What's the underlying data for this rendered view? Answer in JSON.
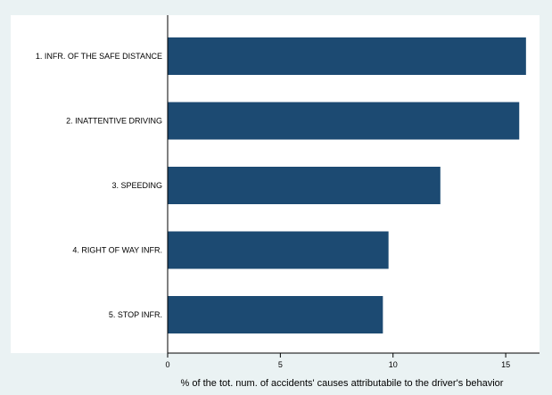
{
  "chart_data": {
    "type": "bar",
    "orientation": "horizontal",
    "categories": [
      "1. INFR. OF THE SAFE DISTANCE",
      "2. INATTENTIVE DRIVING",
      "3. SPEEDING",
      "4. RIGHT OF WAY INFR.",
      "5. STOP INFR."
    ],
    "values": [
      15.9,
      15.6,
      12.1,
      9.8,
      9.55
    ],
    "xlabel": "% of the tot. num. of accidents' causes attributabile to the driver's behavior",
    "ylabel": "",
    "xlim": [
      0,
      16.5
    ],
    "xticks": [
      "0",
      "5",
      "10",
      "15"
    ],
    "grid": false,
    "legend": "none",
    "colors": {
      "bar": "#1c4a72",
      "plot_background": "#ffffff",
      "outer_background": "#eaf2f3",
      "axis": "#000000"
    }
  }
}
